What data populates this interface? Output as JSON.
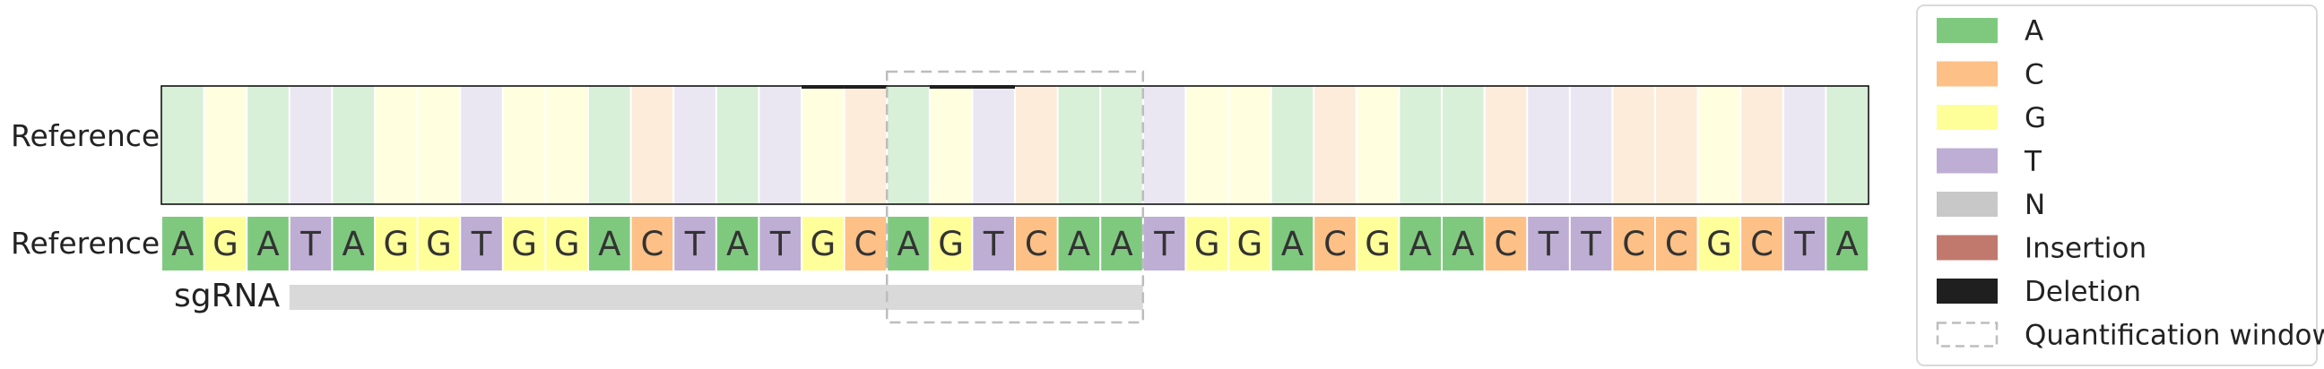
{
  "colors": {
    "A": "#7fc97f",
    "C": "#fdc086",
    "G": "#ffff99",
    "T": "#beaed4",
    "N": "#c8c8c8",
    "Insertion": "#c1796e",
    "Deletion": "#1f1f1f",
    "window": "#bdbdbd",
    "sgrna": "#d9d9d9"
  },
  "chart_data": {
    "type": "heatmap",
    "row_labels": [
      "Reference",
      "Reference"
    ],
    "sgrna_label": "sgRNA",
    "reference_sequence": [
      "A",
      "G",
      "A",
      "T",
      "A",
      "G",
      "G",
      "T",
      "G",
      "G",
      "A",
      "C",
      "T",
      "A",
      "T",
      "G",
      "C",
      "A",
      "G",
      "T",
      "C",
      "A",
      "A",
      "T",
      "G",
      "G",
      "A",
      "C",
      "G",
      "A",
      "A",
      "C",
      "T",
      "T",
      "C",
      "C",
      "G",
      "C",
      "T",
      "A"
    ],
    "deletion_positions": [
      15,
      16,
      18,
      19
    ],
    "sgrna_span": [
      3,
      23
    ],
    "quantification_window": [
      17,
      23
    ],
    "legend": [
      {
        "label": "A",
        "key": "A",
        "style": "fill"
      },
      {
        "label": "C",
        "key": "C",
        "style": "fill"
      },
      {
        "label": "G",
        "key": "G",
        "style": "fill"
      },
      {
        "label": "T",
        "key": "T",
        "style": "fill"
      },
      {
        "label": "N",
        "key": "N",
        "style": "fill"
      },
      {
        "label": "Insertion",
        "key": "Insertion",
        "style": "fill"
      },
      {
        "label": "Deletion",
        "key": "Deletion",
        "style": "fill"
      },
      {
        "label": "Quantification window",
        "key": "window",
        "style": "dashed"
      }
    ]
  }
}
